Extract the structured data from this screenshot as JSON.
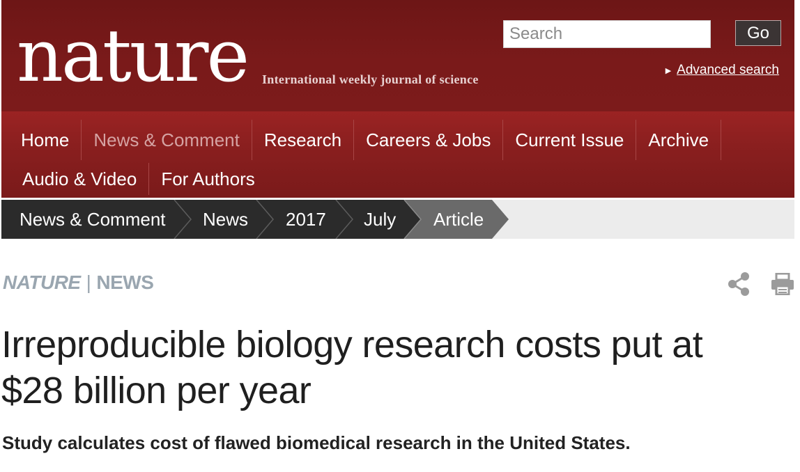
{
  "header": {
    "logo": "nature",
    "tagline": "International weekly journal of science",
    "search": {
      "placeholder": "Search",
      "value": ""
    },
    "go_label": "Go",
    "advanced_search": "Advanced search",
    "colors": {
      "masthead": "#7a1a1a",
      "nav": "#8a1f1f",
      "active_nav_text": "#d5a3a3"
    }
  },
  "nav": {
    "row1": [
      {
        "label": "Home",
        "active": false
      },
      {
        "label": "News & Comment",
        "active": true
      },
      {
        "label": "Research",
        "active": false
      },
      {
        "label": "Careers & Jobs",
        "active": false
      },
      {
        "label": "Current Issue",
        "active": false
      },
      {
        "label": "Archive",
        "active": false
      }
    ],
    "row2": [
      {
        "label": "Audio & Video",
        "active": false
      },
      {
        "label": "For Authors",
        "active": false
      }
    ]
  },
  "breadcrumb": {
    "items": [
      "News & Comment",
      "News",
      "2017",
      "July",
      "Article"
    ],
    "current_index": 4,
    "colors": {
      "dark": "#2b2b2b",
      "current": "#6a6a6a"
    }
  },
  "article": {
    "section_brand": "NATURE",
    "section_separator": "|",
    "section_name": "NEWS",
    "title_line1": "Irreproducible biology research costs put at",
    "title_line2": "$28 billion per year",
    "standfirst": "Study calculates cost of flawed biomedical research in the United States.",
    "tools": {
      "share_icon": "share-icon",
      "print_icon": "print-icon"
    }
  }
}
